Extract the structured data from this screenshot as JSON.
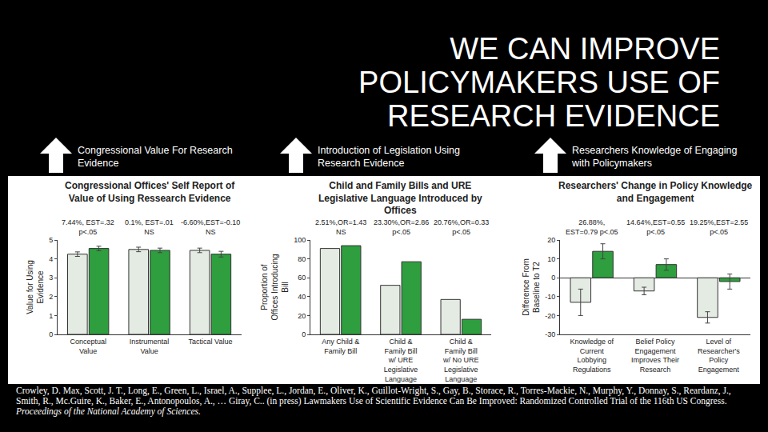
{
  "title": "WE CAN IMPROVE POLICYMAKERS USE OF RESEARCH EVIDENCE",
  "headings": [
    "Congressional Value For Research Evidence",
    "Introduction of Legislation Using Research Evidence",
    "Researchers Knowledge of Engaging with Policymakers"
  ],
  "citation": {
    "text": "Crowley, D. Max, Scott, J. T., Long, E., Green, L., Israel, A., Supplee, L., Jordan, E., Oliver, K., Guillot-Wright, S., Gay, B., Storace, R., Torres-Mackie, N., Murphy, Y., Donnay, S., Reardanz, J., Smith, R., Mc.Guire, K., Baker, E., Antonopoulos, A., … Giray, C.. (in press) Lawmakers Use of Scientific Evidence Can Be Improved: Randomized Controlled Trial of the 116th US Congress.",
    "journal": "Proceedings of the National Academy of Sciences."
  },
  "chart_data": [
    {
      "type": "bar",
      "title": "Congressional Offices' Self Report of Value of Using Ressearch Evidence",
      "y_label": "Value for Using Evidence",
      "categories": [
        "Conceptual Value",
        "Instrumental Value",
        "Tactical Value"
      ],
      "series": [
        {
          "color": "#e4ebe3",
          "values": [
            4.25,
            4.5,
            4.45
          ],
          "error": [
            0.12,
            0.12,
            0.12
          ]
        },
        {
          "color": "#2e9e3e",
          "values": [
            4.55,
            4.45,
            4.25
          ],
          "error": [
            0.12,
            0.12,
            0.15
          ]
        }
      ],
      "annotations": [
        "7.44%, EST=.32 p<.05",
        "0.1%, EST=.01 NS",
        "-6.60%,EST=-0.10 NS"
      ],
      "ylim": [
        0,
        5
      ],
      "yticks": [
        0,
        1,
        2,
        3,
        4,
        5
      ],
      "grid": false
    },
    {
      "type": "bar",
      "title": "Child and Family Bills and URE Legislative Language Introduced by Offices",
      "y_label": "Proportion of Offices Introducing Bill",
      "categories": [
        "Any Child & Family Bill",
        "Child & Family Bill w/ URE Legislative Language",
        "Child & Family Bill w/ No URE Legislative Language"
      ],
      "series": [
        {
          "color": "#e4ebe3",
          "values": [
            91,
            52,
            37
          ]
        },
        {
          "color": "#2e9e3e",
          "values": [
            94,
            77,
            16
          ]
        }
      ],
      "annotations": [
        "2.51%,OR=1.43 NS",
        "23.30%,OR=2.86 p<.05",
        "20.76%,OR=0.33 p<.05"
      ],
      "ylim": [
        0,
        100
      ],
      "yticks": [
        0,
        20,
        40,
        60,
        80,
        100
      ],
      "grid": false
    },
    {
      "type": "bar",
      "title": "Researchers' Change in Policy Knowledge and Engagement",
      "y_label": "Difference From Baseline to T2",
      "categories": [
        "Knowledge of Current Lobbying Regulations",
        "Belief Policy Engagement Improves Their Research",
        "Level of Researcher's Policy Engagement"
      ],
      "series": [
        {
          "color": "#e4ebe3",
          "values": [
            -13,
            -7,
            -21
          ],
          "error": [
            7,
            2,
            3
          ]
        },
        {
          "color": "#2e9e3e",
          "values": [
            14,
            7,
            -2
          ],
          "error": [
            4,
            3,
            4
          ]
        }
      ],
      "annotations": [
        "26.88%, EST=0.79 p<.05",
        "14.64%,EST=0.55 p<.05",
        "19.25%,EST=2.55 p<.05"
      ],
      "ylim": [
        -30,
        20
      ],
      "yticks": [
        -30,
        -20,
        -10,
        0,
        10,
        20
      ],
      "grid": false
    }
  ]
}
